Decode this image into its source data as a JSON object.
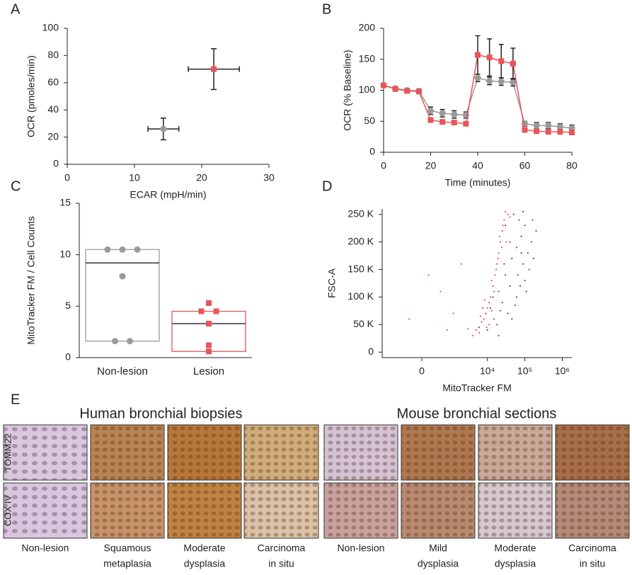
{
  "chart_data": [
    {
      "type": "scatter",
      "label": "A",
      "xlabel": "ECAR (mpH/min)",
      "ylabel": "OCR (pmoles/min)",
      "xlim": [
        0,
        30
      ],
      "xticks": [
        0,
        10,
        20,
        30
      ],
      "ylim": [
        0,
        100
      ],
      "yticks": [
        0,
        20,
        40,
        60,
        80,
        100
      ],
      "series": [
        {
          "color": "#9a9a9a",
          "marker": "circle",
          "x": [
            14.3
          ],
          "values": [
            26
          ],
          "x_err": [
            2.3
          ],
          "y_err": [
            8
          ]
        },
        {
          "color": "#e8555a",
          "marker": "square",
          "x": [
            21.8
          ],
          "values": [
            70
          ],
          "x_err": [
            3.8
          ],
          "y_err": [
            15
          ]
        }
      ]
    },
    {
      "type": "line",
      "label": "B",
      "xlabel": "Time (minutes)",
      "ylabel": "OCR (% Baseline)",
      "xlim": [
        0,
        80
      ],
      "xticks": [
        0,
        20,
        40,
        60,
        80
      ],
      "ylim": [
        0,
        200
      ],
      "yticks": [
        0,
        50,
        100,
        150,
        200
      ],
      "x": [
        0,
        5,
        10,
        15,
        20,
        25,
        30,
        35,
        40,
        45,
        50,
        55,
        60,
        65,
        70,
        75,
        80
      ],
      "series": [
        {
          "color": "#9a9a9a",
          "marker": "circle",
          "values": [
            108,
            103,
            100,
            99,
            67,
            63,
            61,
            60,
            120,
            115,
            114,
            113,
            46,
            43,
            43,
            41,
            39
          ],
          "y_err": [
            3,
            3,
            3,
            3,
            6,
            6,
            6,
            5,
            6,
            6,
            6,
            6,
            4,
            5,
            5,
            5,
            5
          ]
        },
        {
          "color": "#e8555a",
          "marker": "square",
          "values": [
            108,
            102,
            99,
            98,
            52,
            49,
            48,
            46,
            157,
            153,
            147,
            143,
            36,
            34,
            33,
            33,
            32
          ],
          "y_err": [
            2,
            2,
            2,
            2,
            2,
            2,
            2,
            2,
            31,
            30,
            27,
            25,
            2,
            2,
            2,
            2,
            2
          ]
        }
      ]
    },
    {
      "type": "box",
      "label": "C",
      "ylabel": "MitoTracker FM / Cell Counts",
      "categories": [
        "Non-lesion",
        "Lesion"
      ],
      "ylim": [
        0,
        15
      ],
      "yticks": [
        0,
        5,
        10,
        15
      ],
      "series": [
        {
          "color": "#9a9a9a",
          "marker": "circle",
          "q1": 1.6,
          "median": 9.2,
          "q3": 10.5,
          "points": [
            10.5,
            10.5,
            10.5,
            7.9,
            1.6,
            1.6
          ]
        },
        {
          "color": "#e8555a",
          "marker": "square",
          "q1": 0.6,
          "median": 3.3,
          "q3": 4.5,
          "points": [
            5.3,
            4.5,
            4.5,
            3.3,
            1.2,
            0.6
          ]
        }
      ]
    },
    {
      "type": "scatter",
      "label": "D",
      "xlabel": "MitoTracker FM",
      "ylabel": "FSC-A",
      "xscale": "biexponential",
      "xlim": [
        -2000,
        1800000
      ],
      "xticks": [
        0,
        {
          "value": 10000,
          "label": "10⁴"
        },
        {
          "value": 100000,
          "label": "10⁵"
        },
        {
          "value": 1000000,
          "label": "10⁶"
        }
      ],
      "ylim": [
        -10000,
        260000
      ],
      "yticks": [
        0,
        {
          "value": 50000,
          "label": "50 K"
        },
        {
          "value": 100000,
          "label": "100 K"
        },
        {
          "value": 150000,
          "label": "150 K"
        },
        {
          "value": 200000,
          "label": "200 K"
        },
        {
          "value": 250000,
          "label": "250 K"
        }
      ],
      "series": [
        {
          "color": "#555555",
          "marker": "dot",
          "x": [
            8000,
            12000,
            20000,
            30000,
            45000,
            60000,
            80000,
            100000,
            50000,
            70000,
            15000,
            25000,
            40000,
            90000,
            120000,
            150000,
            35000,
            60000,
            100000,
            130000,
            10000,
            18000,
            6000,
            22000,
            55000,
            75000,
            40000,
            30000,
            90000,
            160000,
            200000,
            110000,
            65000,
            28000,
            20000,
            9000,
            14000,
            45000,
            80000,
            170000
          ],
          "values": [
            60000,
            80000,
            110000,
            140000,
            170000,
            190000,
            210000,
            230000,
            250000,
            240000,
            60000,
            90000,
            120000,
            160000,
            180000,
            200000,
            70000,
            100000,
            130000,
            150000,
            40000,
            50000,
            45000,
            75000,
            85000,
            120000,
            200000,
            230000,
            255000,
            240000,
            220000,
            110000,
            140000,
            160000,
            30000,
            70000,
            100000,
            60000,
            180000,
            170000
          ]
        },
        {
          "color": "#f0505a",
          "marker": "dot",
          "x": [
            5000,
            7000,
            9000,
            6000,
            8000,
            10000,
            12000,
            11000,
            14000,
            16000,
            18000,
            20000,
            22000,
            25000,
            28000,
            30000,
            35000,
            26000,
            24000,
            15000,
            13000,
            17000,
            19000,
            21000,
            40000,
            32000,
            9500,
            7500,
            4000,
            11000,
            6500,
            8500,
            3000,
            13000,
            500,
            1200,
            150,
            2000,
            800,
            -300
          ],
          "values": [
            40000,
            55000,
            70000,
            35000,
            60000,
            80000,
            100000,
            90000,
            120000,
            140000,
            160000,
            180000,
            200000,
            220000,
            240000,
            255000,
            250000,
            230000,
            190000,
            110000,
            130000,
            150000,
            170000,
            210000,
            245000,
            200000,
            45000,
            80000,
            30000,
            50000,
            65000,
            95000,
            42000,
            75000,
            110000,
            70000,
            140000,
            160000,
            40000,
            60000
          ]
        }
      ]
    }
  ],
  "panel_e": {
    "label": "E",
    "rows": [
      "TOMM22",
      "COX IV"
    ],
    "groups": [
      {
        "title": "Human bronchial biopsies",
        "columns": [
          [
            "Non-lesion"
          ],
          [
            "Squamous",
            "metaplasia"
          ],
          [
            "Moderate",
            "dysplasia"
          ],
          [
            "Carcinoma",
            "in situ"
          ]
        ]
      },
      {
        "title": "Mouse bronchial sections",
        "columns": [
          [
            "Non-lesion"
          ],
          [
            "Mild",
            "dysplasia"
          ],
          [
            "Moderate",
            "dysplasia"
          ],
          [
            "Carcinoma",
            "in situ"
          ]
        ]
      }
    ]
  }
}
